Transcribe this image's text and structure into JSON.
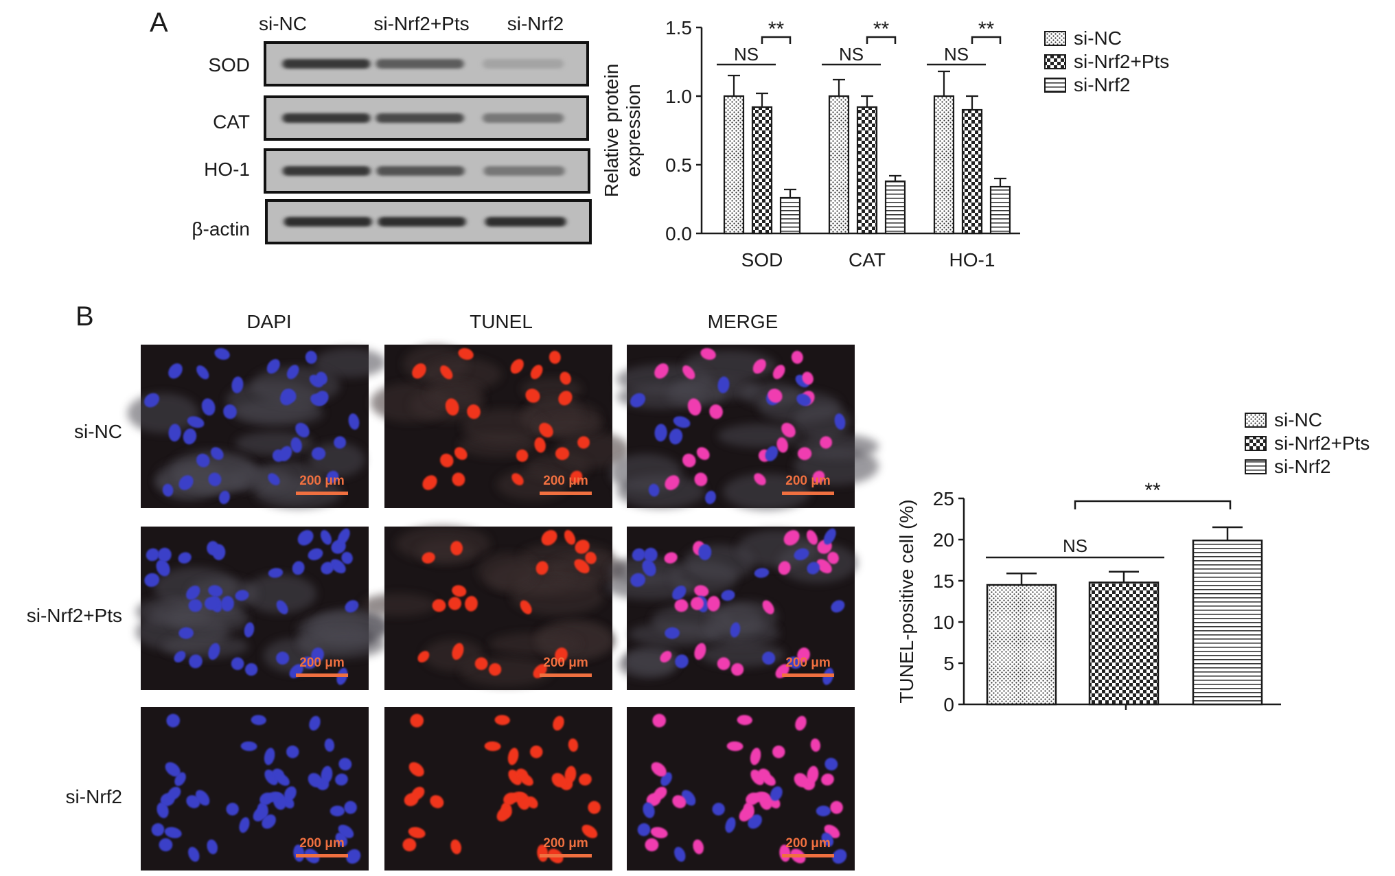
{
  "panels": {
    "a": {
      "letter": "A",
      "blot": {
        "lanes": [
          "si-NC",
          "si-Nrf2+Pts",
          "si-Nrf2"
        ],
        "rows": [
          {
            "label": "SOD",
            "intensity": [
              0.8,
              0.6,
              0.2
            ]
          },
          {
            "label": "CAT",
            "intensity": [
              0.8,
              0.7,
              0.45
            ]
          },
          {
            "label": "HO-1",
            "intensity": [
              0.8,
              0.65,
              0.45
            ]
          },
          {
            "label": "β-actin",
            "intensity": [
              0.85,
              0.85,
              0.85
            ]
          }
        ]
      }
    },
    "b": {
      "letter": "B",
      "columns": [
        "DAPI",
        "TUNEL",
        "MERGE"
      ],
      "rows": [
        "si-NC",
        "si-Nrf2+Pts",
        "si-Nrf2"
      ],
      "scale_bar": "200 μm"
    }
  },
  "colors": {
    "dapi_nucleus": "#3a3fc8",
    "tunel_nucleus": "#f0361e",
    "merge_nucleus": "#f03cb0",
    "micrograph_background": "#1a1416",
    "scale_bar": "#f07040",
    "bar_fill": "#ffffff",
    "axis": "#1a1a1a"
  },
  "chart_data": [
    {
      "type": "bar",
      "categories": [
        "SOD",
        "CAT",
        "HO-1"
      ],
      "series": [
        {
          "name": "si-NC",
          "values": [
            1.0,
            1.0,
            1.0
          ],
          "errors": [
            0.15,
            0.12,
            0.18
          ],
          "pattern": "dots"
        },
        {
          "name": "si-Nrf2+Pts",
          "values": [
            0.92,
            0.92,
            0.9
          ],
          "errors": [
            0.1,
            0.08,
            0.1
          ],
          "pattern": "check"
        },
        {
          "name": "si-Nrf2",
          "values": [
            0.26,
            0.38,
            0.34
          ],
          "errors": [
            0.06,
            0.04,
            0.06
          ],
          "pattern": "hlines"
        }
      ],
      "xlabel": "",
      "ylabel": "Relative protein\nexpression",
      "ylim": [
        0,
        1.5
      ],
      "yticks": [
        "0.0",
        "0.5",
        "1.0",
        "1.5"
      ],
      "grid": false,
      "legend": "right",
      "annotations": [
        {
          "category": "SOD",
          "label": "NS",
          "between": [
            "si-NC",
            "si-Nrf2+Pts"
          ]
        },
        {
          "category": "SOD",
          "label": "**",
          "between": [
            "si-Nrf2+Pts",
            "si-Nrf2"
          ]
        },
        {
          "category": "CAT",
          "label": "NS",
          "between": [
            "si-NC",
            "si-Nrf2+Pts"
          ]
        },
        {
          "category": "CAT",
          "label": "**",
          "between": [
            "si-Nrf2+Pts",
            "si-Nrf2"
          ]
        },
        {
          "category": "HO-1",
          "label": "NS",
          "between": [
            "si-NC",
            "si-Nrf2+Pts"
          ]
        },
        {
          "category": "HO-1",
          "label": "**",
          "between": [
            "si-Nrf2+Pts",
            "si-Nrf2"
          ]
        }
      ]
    },
    {
      "type": "bar",
      "categories": [
        "si-NC",
        "si-Nrf2+Pts",
        "si-Nrf2"
      ],
      "values": [
        14.5,
        14.8,
        19.9
      ],
      "errors": [
        1.4,
        1.3,
        1.6
      ],
      "patterns": [
        "dots",
        "check",
        "hlines"
      ],
      "legend_entries": [
        "si-NC",
        "si-Nrf2+Pts",
        "si-Nrf2"
      ],
      "xlabel": "",
      "ylabel": "TUNEL-positive cell (%)",
      "ylim": [
        0,
        25
      ],
      "yticks": [
        "0",
        "5",
        "10",
        "15",
        "20",
        "25"
      ],
      "grid": false,
      "legend": "top-right",
      "annotations": [
        {
          "label": "NS",
          "between": [
            "si-NC",
            "si-Nrf2+Pts"
          ]
        },
        {
          "label": "**",
          "between": [
            "si-Nrf2+Pts",
            "si-Nrf2"
          ]
        }
      ]
    }
  ]
}
